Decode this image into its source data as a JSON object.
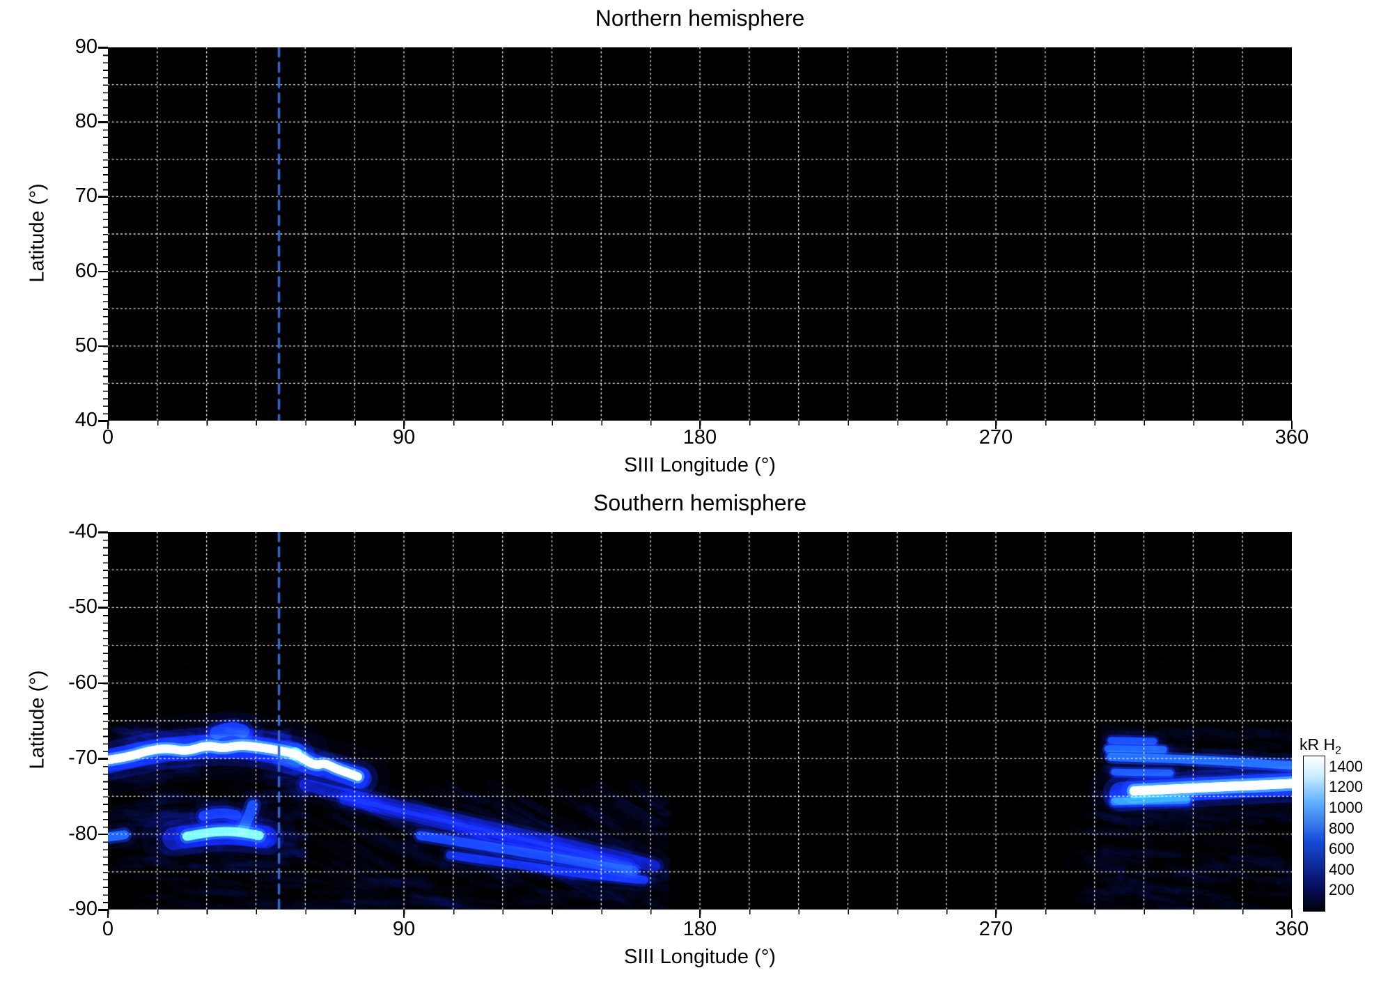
{
  "colors": {
    "plot_background": "#000000",
    "grid": "#ffffff",
    "marker_line": "#3566cc",
    "text": "#000000"
  },
  "colorbar": {
    "label": "kR H",
    "label_sub": "2",
    "ticks": [
      1400,
      1200,
      1000,
      800,
      600,
      400,
      200
    ],
    "min": 0,
    "max": 1500,
    "stops": [
      [
        0,
        [
          0,
          0,
          8
        ]
      ],
      [
        0.18,
        [
          8,
          18,
          105
        ]
      ],
      [
        0.45,
        [
          22,
          75,
          215
        ]
      ],
      [
        0.7,
        [
          95,
          175,
          255
        ]
      ],
      [
        0.88,
        [
          205,
          238,
          255
        ]
      ],
      [
        1,
        [
          255,
          255,
          255
        ]
      ]
    ]
  },
  "chart_data": [
    {
      "type": "heatmap",
      "title": "Northern hemisphere",
      "xlabel": "SIII Longitude (°)",
      "ylabel": "Latitude (°)",
      "xlim": [
        0,
        360
      ],
      "ylim": [
        40,
        90
      ],
      "xticks": [
        0,
        90,
        180,
        270,
        360
      ],
      "yticks": [
        90,
        80,
        70,
        60,
        50,
        40
      ],
      "grid": {
        "lon_step": 15,
        "lat_step": 5,
        "style": "dotted"
      },
      "marker_longitude": 52,
      "emission": "none",
      "features": []
    },
    {
      "type": "heatmap",
      "title": "Southern hemisphere",
      "xlabel": "SIII Longitude (°)",
      "ylabel": "Latitude (°)",
      "xlim": [
        0,
        360
      ],
      "ylim": [
        -90,
        -40
      ],
      "xticks": [
        0,
        90,
        180,
        270,
        360
      ],
      "yticks": [
        -40,
        -50,
        -60,
        -70,
        -80,
        -90
      ],
      "grid": {
        "lon_step": 15,
        "lat_step": 5,
        "style": "dotted"
      },
      "marker_longitude": 52,
      "emission": "auroral H2 emission, kR",
      "features": [
        {
          "kind": "arc",
          "pts": [
            [
              0,
              -70.2
            ],
            [
              6,
              -69.8
            ],
            [
              12,
              -69.0
            ],
            [
              18,
              -68.6
            ],
            [
              24,
              -69.1
            ],
            [
              30,
              -68.2
            ],
            [
              35,
              -68.7
            ],
            [
              40,
              -68.2
            ],
            [
              46,
              -68.5
            ],
            [
              52,
              -68.9
            ],
            [
              57,
              -69.4
            ]
          ],
          "w": 1.1,
          "peak": 1350
        },
        {
          "kind": "arc",
          "pts": [
            [
              0,
              -70.4
            ],
            [
              14,
              -69.0
            ],
            [
              28,
              -68.4
            ],
            [
              42,
              -68.4
            ],
            [
              57,
              -69.6
            ]
          ],
          "w": 3.2,
          "peak": 330
        },
        {
          "kind": "arc",
          "pts": [
            [
              57,
              -69.4
            ],
            [
              60,
              -70.2
            ],
            [
              63,
              -70.9
            ],
            [
              66,
              -70.6
            ],
            [
              69,
              -71.3
            ],
            [
              73,
              -71.9
            ],
            [
              76,
              -72.4
            ]
          ],
          "w": 1.1,
          "peak": 1400
        },
        {
          "kind": "arc",
          "pts": [
            [
              55,
              -69.8
            ],
            [
              63,
              -70.9
            ],
            [
              70,
              -71.7
            ],
            [
              77,
              -72.6
            ]
          ],
          "w": 2.8,
          "peak": 320
        },
        {
          "kind": "arc",
          "pts": [
            [
              33,
              -66.6
            ],
            [
              37,
              -65.9
            ],
            [
              41,
              -66.4
            ]
          ],
          "w": 1.8,
          "peak": 430
        },
        {
          "kind": "diffuse",
          "lon": [
            2,
            55
          ],
          "lat": [
            -66,
            -69.5
          ],
          "count": 90,
          "len": [
            4,
            10
          ],
          "w": [
            0.5,
            1.2
          ],
          "peak": 260,
          "drift": -0.3,
          "seed": 11
        },
        {
          "kind": "arc",
          "pts": [
            [
              24,
              -80.3
            ],
            [
              29,
              -79.9
            ],
            [
              35,
              -79.6
            ],
            [
              41,
              -79.8
            ],
            [
              46,
              -80.2
            ]
          ],
          "w": 1.2,
          "peak": 1050
        },
        {
          "kind": "arc",
          "pts": [
            [
              20,
              -80.6
            ],
            [
              33,
              -79.7
            ],
            [
              48,
              -80.4
            ]
          ],
          "w": 3.0,
          "peak": 280
        },
        {
          "kind": "arc",
          "pts": [
            [
              29,
              -77.6
            ],
            [
              34,
              -77.1
            ],
            [
              39,
              -77.5
            ]
          ],
          "w": 1.3,
          "peak": 420
        },
        {
          "kind": "arc",
          "pts": [
            [
              41,
              -79.4
            ],
            [
              43,
              -77.6
            ],
            [
              44,
              -76.2
            ]
          ],
          "w": 1.4,
          "peak": 520
        },
        {
          "kind": "arc",
          "pts": [
            [
              0,
              -80.4
            ],
            [
              5,
              -80.1
            ]
          ],
          "w": 1.2,
          "peak": 650
        },
        {
          "kind": "diffuse",
          "lon": [
            0,
            60
          ],
          "lat": [
            -70,
            -85
          ],
          "count": 150,
          "len": [
            5,
            14
          ],
          "w": [
            0.5,
            1.3
          ],
          "peak": 200,
          "drift": -0.2,
          "seed": 7
        },
        {
          "kind": "diffuse",
          "lon": [
            55,
            170
          ],
          "lat": [
            -73,
            -86
          ],
          "count": 140,
          "len": [
            8,
            22
          ],
          "w": [
            0.5,
            1.2
          ],
          "peak": 170,
          "drift": -2.2,
          "seed": 21
        },
        {
          "kind": "arc",
          "pts": [
            [
              60,
              -73.5
            ],
            [
              90,
              -76.5
            ],
            [
              120,
              -79.5
            ],
            [
              150,
              -82.5
            ],
            [
              166,
              -84.2
            ]
          ],
          "w": 1.6,
          "peak": 260
        },
        {
          "kind": "arc",
          "pts": [
            [
              72,
              -75.5
            ],
            [
              100,
              -78.5
            ],
            [
              130,
              -81.5
            ],
            [
              158,
              -84.3
            ]
          ],
          "w": 1.4,
          "peak": 240
        },
        {
          "kind": "arc",
          "pts": [
            [
              95,
              -80.2
            ],
            [
              118,
              -81.8
            ],
            [
              142,
              -83.6
            ],
            [
              160,
              -84.9
            ]
          ],
          "w": 1.2,
          "peak": 480
        },
        {
          "kind": "arc",
          "pts": [
            [
              104,
              -82.8
            ],
            [
              124,
              -84.0
            ],
            [
              146,
              -85.4
            ],
            [
              163,
              -86.1
            ]
          ],
          "w": 1.1,
          "peak": 380
        },
        {
          "kind": "diffuse",
          "lon": [
            0,
            170
          ],
          "lat": [
            -85.5,
            -90
          ],
          "count": 110,
          "len": [
            6,
            18
          ],
          "w": [
            0.5,
            1.1
          ],
          "peak": 140,
          "drift": -0.4,
          "seed": 33
        },
        {
          "kind": "speckle",
          "lon": [
            0,
            95
          ],
          "lat": [
            -40,
            -62
          ],
          "count": 1500,
          "peak": 70,
          "seed": 41
        },
        {
          "kind": "speckle",
          "lon": [
            0,
            175
          ],
          "lat": [
            -62,
            -90
          ],
          "count": 2200,
          "peak": 90,
          "seed": 42
        },
        {
          "kind": "arc",
          "pts": [
            [
              305,
              -67.6
            ],
            [
              318,
              -67.7
            ]
          ],
          "w": 0.9,
          "peak": 520
        },
        {
          "kind": "arc",
          "pts": [
            [
              304,
              -68.7
            ],
            [
              321,
              -68.8
            ]
          ],
          "w": 0.9,
          "peak": 600
        },
        {
          "kind": "arc",
          "pts": [
            [
              305,
              -69.8
            ],
            [
              330,
              -70.1
            ],
            [
              348,
              -70.6
            ],
            [
              360,
              -70.9
            ]
          ],
          "w": 1.1,
          "peak": 680
        },
        {
          "kind": "arc",
          "pts": [
            [
              306,
              -71.8
            ],
            [
              323,
              -71.9
            ]
          ],
          "w": 0.9,
          "peak": 560
        },
        {
          "kind": "arc",
          "pts": [
            [
              312,
              -74.3
            ],
            [
              326,
              -74.0
            ],
            [
              340,
              -73.7
            ],
            [
              352,
              -73.5
            ],
            [
              360,
              -73.3
            ]
          ],
          "w": 1.2,
          "peak": 1400
        },
        {
          "kind": "arc",
          "pts": [
            [
              308,
              -74.6
            ],
            [
              335,
              -73.9
            ],
            [
              360,
              -73.4
            ]
          ],
          "w": 3.0,
          "peak": 380
        },
        {
          "kind": "arc",
          "pts": [
            [
              306,
              -75.7
            ],
            [
              328,
              -75.5
            ]
          ],
          "w": 1.0,
          "peak": 700
        },
        {
          "kind": "diffuse",
          "lon": [
            298,
            360
          ],
          "lat": [
            -66,
            -77
          ],
          "count": 90,
          "len": [
            5,
            14
          ],
          "w": [
            0.5,
            1.2
          ],
          "peak": 180,
          "drift": -0.3,
          "seed": 55
        },
        {
          "kind": "diffuse",
          "lon": [
            292,
            360
          ],
          "lat": [
            -77,
            -90
          ],
          "count": 120,
          "len": [
            6,
            16
          ],
          "w": [
            0.5,
            1.2
          ],
          "peak": 150,
          "drift": -0.6,
          "seed": 56
        },
        {
          "kind": "speckle",
          "lon": [
            290,
            360
          ],
          "lat": [
            -52,
            -90
          ],
          "count": 1400,
          "peak": 80,
          "seed": 57
        }
      ]
    }
  ]
}
